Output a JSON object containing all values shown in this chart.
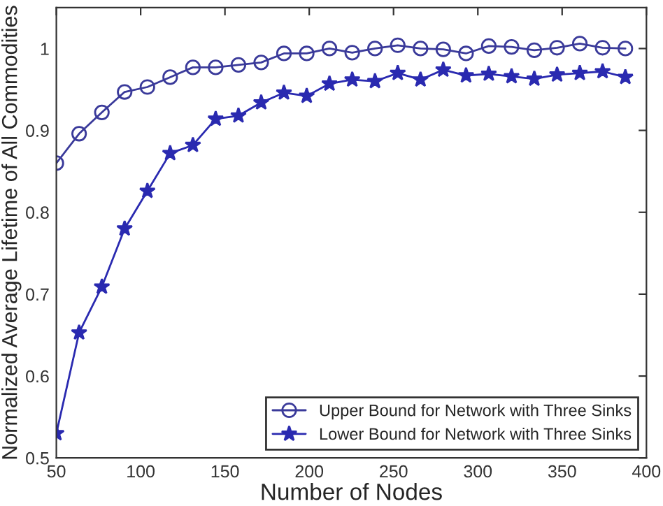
{
  "chart_data": {
    "type": "line",
    "xlabel": "Number of Nodes",
    "ylabel": "Normalized Average Lifetime of All Commodities",
    "x": [
      50,
      63.5,
      77,
      90.5,
      104,
      117.5,
      131,
      144.5,
      158,
      171.5,
      185,
      198.5,
      212,
      225.5,
      239,
      252.5,
      266,
      279.5,
      293,
      306.5,
      320,
      333.5,
      347,
      360.5,
      374,
      387.5
    ],
    "series": [
      {
        "name": "Upper Bound for Network with Three Sinks",
        "color": "#3a3a9a",
        "marker": "circle",
        "values": [
          0.86,
          0.896,
          0.922,
          0.947,
          0.953,
          0.965,
          0.977,
          0.977,
          0.98,
          0.983,
          0.994,
          0.994,
          1.0,
          0.995,
          1.0,
          1.004,
          1.0,
          0.999,
          0.994,
          1.003,
          1.002,
          0.998,
          1.001,
          1.006,
          1.001,
          1.0
        ]
      },
      {
        "name": "Lower Bound for Network with Three Sinks",
        "color": "#2a2ab0",
        "marker": "star",
        "values": [
          0.53,
          0.653,
          0.709,
          0.78,
          0.826,
          0.872,
          0.882,
          0.914,
          0.918,
          0.934,
          0.946,
          0.942,
          0.957,
          0.962,
          0.96,
          0.97,
          0.962,
          0.974,
          0.967,
          0.969,
          0.966,
          0.963,
          0.968,
          0.97,
          0.972,
          0.965
        ]
      }
    ],
    "xlim": [
      50,
      400
    ],
    "xticks": [
      50,
      100,
      150,
      200,
      250,
      300,
      350,
      400
    ],
    "ylim": [
      0.5,
      1.05
    ],
    "yticks": [
      0.5,
      0.6,
      0.7,
      0.8,
      0.9,
      {
        "value": 1.0,
        "label": "1"
      }
    ],
    "grid": false,
    "legend": "bottom right",
    "line_style": "solid"
  }
}
